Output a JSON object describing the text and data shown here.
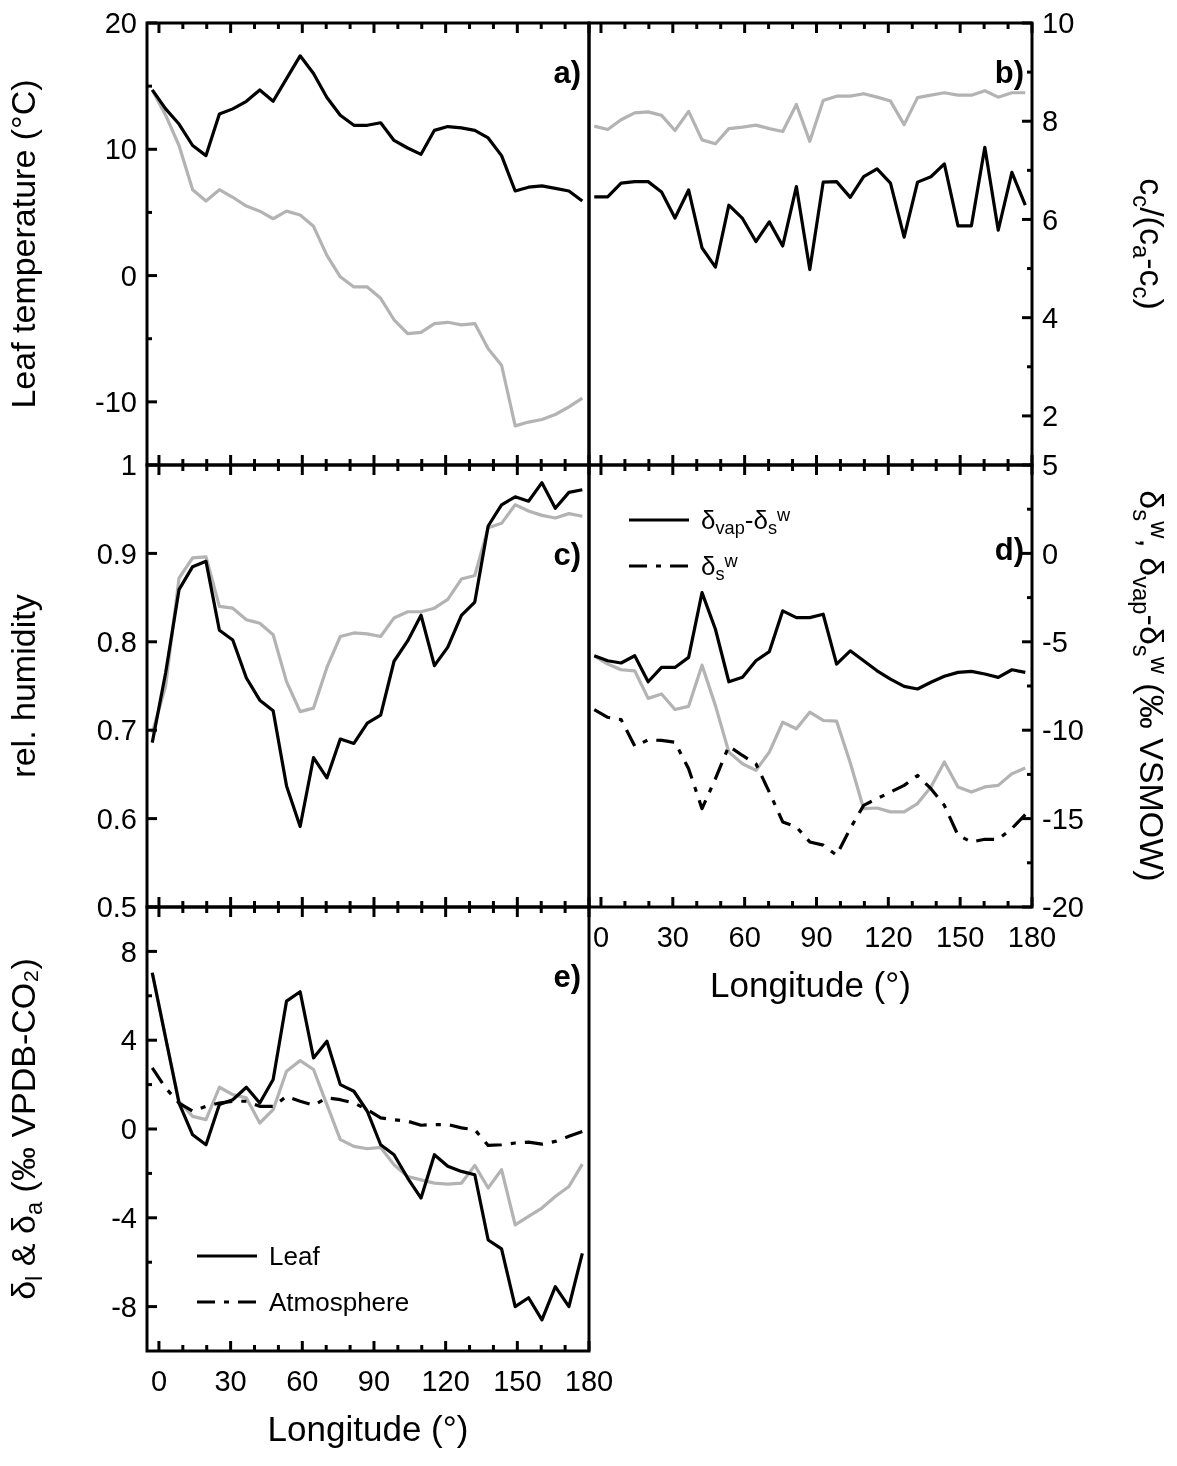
{
  "chart_data": [
    {
      "type": "line",
      "title": "a)",
      "ylabel": "Leaf temperature (°C)",
      "tick_labels": "y",
      "xlim": [
        -5,
        180
      ],
      "xticks": [
        0,
        {
          "value": 10,
          "label": null
        },
        {
          "value": 20,
          "label": null
        },
        30,
        {
          "value": 40,
          "label": null
        },
        {
          "value": 50,
          "label": null
        },
        60,
        {
          "value": 70,
          "label": null
        },
        {
          "value": 80,
          "label": null
        },
        90,
        {
          "value": 100,
          "label": null
        },
        {
          "value": 110,
          "label": null
        },
        120,
        {
          "value": 130,
          "label": null
        },
        {
          "value": 140,
          "label": null
        },
        150,
        {
          "value": 160,
          "label": null
        },
        {
          "value": 170,
          "label": null
        },
        180
      ],
      "ylim": [
        -15,
        20
      ],
      "yticks": [
        20,
        {
          "value": 15,
          "label": null
        },
        10,
        {
          "value": 5,
          "label": null
        },
        0,
        {
          "value": -5,
          "label": null
        },
        -10
      ],
      "x": [
        -2.8,
        2.8,
        8.4,
        14.1,
        19.7,
        25.3,
        30.9,
        36.6,
        42.2,
        47.8,
        53.4,
        59.1,
        64.7,
        70.3,
        75.9,
        81.6,
        87.2,
        92.8,
        98.4,
        104.1,
        109.7,
        115.3,
        120.9,
        126.6,
        132.2,
        137.8,
        143.4,
        149.1,
        154.7,
        160.3,
        165.9,
        171.6,
        177.2
      ],
      "series": [
        {
          "color": "#b3b3b3",
          "line_style": "solid",
          "values": [
            14.7,
            12.7,
            10.3,
            6.8,
            5.9,
            6.8,
            6.2,
            5.5,
            5.1,
            4.5,
            5.1,
            4.8,
            3.9,
            1.6,
            -0.1,
            -0.9,
            -0.9,
            -1.8,
            -3.5,
            -4.6,
            -4.5,
            -3.8,
            -3.7,
            -3.9,
            -3.8,
            -5.8,
            -7.1,
            -11.9,
            -11.6,
            -11.4,
            -11.0,
            -10.4,
            -9.7
          ]
        },
        {
          "color": "#000000",
          "line_style": "solid",
          "values": [
            14.7,
            13.2,
            12.0,
            10.3,
            9.5,
            12.8,
            13.2,
            13.8,
            14.7,
            13.8,
            15.6,
            17.4,
            16.0,
            14.1,
            12.7,
            11.9,
            11.9,
            12.1,
            10.7,
            10.1,
            9.6,
            11.5,
            11.8,
            11.7,
            11.5,
            10.9,
            9.5,
            6.7,
            7.0,
            7.1,
            6.9,
            6.7,
            5.9
          ]
        }
      ]
    },
    {
      "type": "line",
      "title": "b)",
      "y2label": "c$_{c}$/(c$_{a}$-c$_{c}$)",
      "tick_labels": "y",
      "xlim": [
        -5,
        180
      ],
      "xticks": [
        0,
        {
          "value": 10,
          "label": null
        },
        {
          "value": 20,
          "label": null
        },
        30,
        {
          "value": 40,
          "label": null
        },
        {
          "value": 50,
          "label": null
        },
        60,
        {
          "value": 70,
          "label": null
        },
        {
          "value": 80,
          "label": null
        },
        90,
        {
          "value": 100,
          "label": null
        },
        {
          "value": 110,
          "label": null
        },
        120,
        {
          "value": 130,
          "label": null
        },
        {
          "value": 140,
          "label": null
        },
        150,
        {
          "value": 160,
          "label": null
        },
        {
          "value": 170,
          "label": null
        },
        180
      ],
      "y2lim": [
        1,
        10
      ],
      "y2ticks": [
        10,
        {
          "value": 9,
          "label": null
        },
        8,
        {
          "value": 7,
          "label": null
        },
        6,
        {
          "value": 5,
          "label": null
        },
        4,
        {
          "value": 3,
          "label": null
        },
        2
      ],
      "x": [
        -2.8,
        2.8,
        8.4,
        14.1,
        19.7,
        25.3,
        30.9,
        36.6,
        42.2,
        47.8,
        53.4,
        59.1,
        64.7,
        70.3,
        75.9,
        81.6,
        87.2,
        92.8,
        98.4,
        104.1,
        109.7,
        115.3,
        120.9,
        126.6,
        132.2,
        137.8,
        143.4,
        149.1,
        154.7,
        160.3,
        165.9,
        171.6,
        177.2
      ],
      "series": [
        {
          "color": "#b3b3b3",
          "line_style": "solid",
          "axis": "y2",
          "values": [
            7.9,
            7.83,
            8.03,
            8.17,
            8.19,
            8.12,
            7.81,
            8.2,
            7.62,
            7.54,
            7.85,
            7.88,
            7.92,
            7.85,
            7.79,
            8.34,
            7.59,
            8.42,
            8.51,
            8.51,
            8.56,
            8.49,
            8.41,
            7.93,
            8.48,
            8.53,
            8.58,
            8.53,
            8.53,
            8.62,
            8.49,
            8.58,
            8.58
          ]
        },
        {
          "color": "#000000",
          "line_style": "solid",
          "axis": "y2",
          "values": [
            6.46,
            6.46,
            6.74,
            6.77,
            6.77,
            6.56,
            6.03,
            6.6,
            5.42,
            5.03,
            6.29,
            6.02,
            5.55,
            5.95,
            5.46,
            6.67,
            4.98,
            6.76,
            6.77,
            6.45,
            6.87,
            7.03,
            6.74,
            5.64,
            6.76,
            6.87,
            7.13,
            5.87,
            5.87,
            7.47,
            5.78,
            6.96,
            6.29
          ]
        }
      ]
    },
    {
      "type": "line",
      "title": "c)",
      "ylabel": "rel. humidity",
      "tick_labels": "y",
      "xlim": [
        -5,
        180
      ],
      "xticks": [
        0,
        {
          "value": 10,
          "label": null
        },
        {
          "value": 20,
          "label": null
        },
        30,
        {
          "value": 40,
          "label": null
        },
        {
          "value": 50,
          "label": null
        },
        60,
        {
          "value": 70,
          "label": null
        },
        {
          "value": 80,
          "label": null
        },
        90,
        {
          "value": 100,
          "label": null
        },
        {
          "value": 110,
          "label": null
        },
        120,
        {
          "value": 130,
          "label": null
        },
        {
          "value": 140,
          "label": null
        },
        150,
        {
          "value": 160,
          "label": null
        },
        {
          "value": 170,
          "label": null
        },
        180
      ],
      "ylim": [
        0.5,
        1
      ],
      "yticks": [
        1,
        0.9,
        0.8,
        0.7,
        0.6,
        0.5
      ],
      "x": [
        -2.8,
        2.8,
        8.4,
        14.1,
        19.7,
        25.3,
        30.9,
        36.6,
        42.2,
        47.8,
        53.4,
        59.1,
        64.7,
        70.3,
        75.9,
        81.6,
        87.2,
        92.8,
        98.4,
        104.1,
        109.7,
        115.3,
        120.9,
        126.6,
        132.2,
        137.8,
        143.4,
        149.1,
        154.7,
        160.3,
        165.9,
        171.6,
        177.2
      ],
      "series": [
        {
          "color": "#b3b3b3",
          "line_style": "solid",
          "values": [
            0.697,
            0.75,
            0.872,
            0.895,
            0.896,
            0.84,
            0.838,
            0.825,
            0.821,
            0.808,
            0.755,
            0.721,
            0.725,
            0.771,
            0.806,
            0.81,
            0.809,
            0.806,
            0.827,
            0.834,
            0.834,
            0.838,
            0.848,
            0.871,
            0.875,
            0.929,
            0.934,
            0.955,
            0.948,
            0.943,
            0.94,
            0.945,
            0.942
          ]
        },
        {
          "color": "#000000",
          "line_style": "solid",
          "values": [
            0.686,
            0.765,
            0.859,
            0.885,
            0.891,
            0.813,
            0.802,
            0.759,
            0.734,
            0.722,
            0.637,
            0.591,
            0.669,
            0.646,
            0.69,
            0.685,
            0.708,
            0.717,
            0.778,
            0.801,
            0.83,
            0.773,
            0.794,
            0.83,
            0.845,
            0.931,
            0.955,
            0.964,
            0.959,
            0.98,
            0.951,
            0.969,
            0.972
          ]
        }
      ]
    },
    {
      "type": "line",
      "title": "d)",
      "xlabel": "Longitude (°)",
      "y2label": "δ$_{s}$$^{w}$, δ$_{vap}$-δ$_{s}$$^{w}$ (‰ VSMOW)",
      "legend": "top left",
      "xlim": [
        -5,
        180
      ],
      "xticks": [
        0,
        {
          "value": 10,
          "label": null
        },
        {
          "value": 20,
          "label": null
        },
        30,
        {
          "value": 40,
          "label": null
        },
        {
          "value": 50,
          "label": null
        },
        60,
        {
          "value": 70,
          "label": null
        },
        {
          "value": 80,
          "label": null
        },
        90,
        {
          "value": 100,
          "label": null
        },
        {
          "value": 110,
          "label": null
        },
        120,
        {
          "value": 130,
          "label": null
        },
        {
          "value": 140,
          "label": null
        },
        150,
        {
          "value": 160,
          "label": null
        },
        {
          "value": 170,
          "label": null
        },
        180
      ],
      "y2lim": [
        -20,
        5
      ],
      "y2ticks": [
        5,
        {
          "value": 2.5,
          "label": null
        },
        0,
        {
          "value": -2.5,
          "label": null
        },
        -5,
        {
          "value": -7.5,
          "label": null
        },
        -10,
        {
          "value": -12.5,
          "label": null
        },
        -15,
        {
          "value": -17.5,
          "label": null
        },
        -20
      ],
      "x": [
        -2.8,
        2.8,
        8.4,
        14.1,
        19.7,
        25.3,
        30.9,
        36.6,
        42.2,
        47.8,
        53.4,
        59.1,
        64.7,
        70.3,
        75.9,
        81.6,
        87.2,
        92.8,
        98.4,
        104.1,
        109.7,
        115.3,
        120.9,
        126.6,
        132.2,
        137.8,
        143.4,
        149.1,
        154.7,
        160.3,
        165.9,
        171.6,
        177.2
      ],
      "series": [
        {
          "color": "#b3b3b3",
          "line_style": "solid",
          "axis": "y2",
          "values": [
            -5.79,
            -6.26,
            -6.58,
            -6.64,
            -8.2,
            -7.95,
            -8.83,
            -8.65,
            -6.32,
            -8.61,
            -11.24,
            -11.9,
            -12.27,
            -11.24,
            -9.55,
            -9.92,
            -8.98,
            -9.45,
            -9.49,
            -11.84,
            -14.44,
            -14.4,
            -14.62,
            -14.62,
            -14.15,
            -13.21,
            -11.8,
            -13.21,
            -13.5,
            -13.21,
            -13.12,
            -12.46,
            -12.14
          ]
        },
        {
          "name": "δ$_{vap}$-δ$_{s}$$^{w}$",
          "color": "#000000",
          "line_style": "solid",
          "axis": "y2",
          "values": [
            -5.79,
            -6.07,
            -6.2,
            -5.79,
            -7.26,
            -6.45,
            -6.45,
            -5.88,
            -2.22,
            -4.29,
            -7.26,
            -7.01,
            -6.07,
            -5.56,
            -3.25,
            -3.63,
            -3.63,
            -3.44,
            -6.26,
            -5.51,
            -6.07,
            -6.64,
            -7.11,
            -7.52,
            -7.67,
            -7.29,
            -6.95,
            -6.73,
            -6.67,
            -6.82,
            -7.01,
            -6.58,
            -6.73
          ]
        },
        {
          "name": "δ$_{s}$$^{w}$",
          "color": "#000000",
          "line_style": "dashed",
          "axis": "y2",
          "values": [
            -8.83,
            -9.27,
            -9.4,
            -10.9,
            -10.55,
            -10.58,
            -10.68,
            -12.18,
            -14.44,
            -12.74,
            -10.9,
            -11.43,
            -11.9,
            -13.5,
            -15.19,
            -15.47,
            -16.32,
            -16.5,
            -17.07,
            -15.56,
            -14.25,
            -13.87,
            -13.5,
            -13.12,
            -12.56,
            -13.31,
            -14.25,
            -15.94,
            -16.32,
            -16.17,
            -16.17,
            -15.56,
            -14.77
          ]
        }
      ]
    },
    {
      "type": "line",
      "title": "e)",
      "xlabel": "Longitude (°)",
      "ylabel": "δ$_{l}$ & δ$_{a}$ (‰ VPDB-CO₂)",
      "legend": "bottom left",
      "xlim": [
        -5,
        180
      ],
      "xticks": [
        0,
        {
          "value": 10,
          "label": null
        },
        {
          "value": 20,
          "label": null
        },
        30,
        {
          "value": 40,
          "label": null
        },
        {
          "value": 50,
          "label": null
        },
        60,
        {
          "value": 70,
          "label": null
        },
        {
          "value": 80,
          "label": null
        },
        90,
        {
          "value": 100,
          "label": null
        },
        {
          "value": 110,
          "label": null
        },
        120,
        {
          "value": 130,
          "label": null
        },
        {
          "value": 140,
          "label": null
        },
        150,
        {
          "value": 160,
          "label": null
        },
        {
          "value": 170,
          "label": null
        },
        180
      ],
      "ylim": [
        -10,
        10
      ],
      "yticks": [
        8,
        {
          "value": 6,
          "label": null
        },
        4,
        {
          "value": 2,
          "label": null
        },
        0,
        {
          "value": -2,
          "label": null
        },
        -4,
        {
          "value": -6,
          "label": null
        },
        -8
      ],
      "x": [
        -2.8,
        2.8,
        8.4,
        14.1,
        19.7,
        25.3,
        30.9,
        36.6,
        42.2,
        47.8,
        53.4,
        59.1,
        64.7,
        70.3,
        75.9,
        81.6,
        87.2,
        92.8,
        98.4,
        104.1,
        109.7,
        115.3,
        120.9,
        126.6,
        132.2,
        137.8,
        143.4,
        149.1,
        154.7,
        160.3,
        165.9,
        171.6,
        177.2
      ],
      "series": [
        {
          "color": "#b3b3b3",
          "line_style": "solid",
          "values": [
            7.04,
            4.1,
            1.25,
            0.57,
            0.42,
            1.88,
            1.55,
            1.4,
            0.27,
            0.87,
            2.6,
            3.08,
            2.68,
            1.1,
            -0.48,
            -0.78,
            -0.89,
            -0.83,
            -1.61,
            -2.14,
            -2.29,
            -2.44,
            -2.48,
            -2.44,
            -1.64,
            -2.66,
            -1.83,
            -4.32,
            -3.94,
            -3.56,
            -3.04,
            -2.59,
            -1.58
          ]
        },
        {
          "name": "Leaf",
          "color": "#000000",
          "line_style": "solid",
          "values": [
            7.04,
            4.1,
            1.17,
            -0.26,
            -0.71,
            1.1,
            1.32,
            1.88,
            1.17,
            2.23,
            5.76,
            6.18,
            3.2,
            3.95,
            2.0,
            1.7,
            0.8,
            -0.71,
            -1.16,
            -2.21,
            -3.11,
            -1.16,
            -1.68,
            -1.91,
            -2.06,
            -5.0,
            -5.4,
            -8.0,
            -7.6,
            -8.6,
            -7.1,
            -8.0,
            -5.6
          ]
        },
        {
          "name": "Atmosphere",
          "color": "#000000",
          "line_style": "dashed",
          "values": [
            2.75,
            1.85,
            1.17,
            0.8,
            1.02,
            1.17,
            1.25,
            1.25,
            1.02,
            1.02,
            1.47,
            1.25,
            1.07,
            1.4,
            1.32,
            1.17,
            0.87,
            0.5,
            0.42,
            0.35,
            0.17,
            0.2,
            0.2,
            0.05,
            -0.03,
            -0.74,
            -0.71,
            -0.63,
            -0.59,
            -0.68,
            -0.56,
            -0.33,
            -0.11
          ]
        }
      ]
    }
  ]
}
